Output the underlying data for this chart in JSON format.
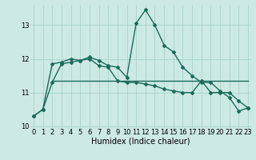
{
  "title": "",
  "xlabel": "Humidex (Indice chaleur)",
  "bg_color": "#cce9e4",
  "grid_color": "#aad4cc",
  "line_color": "#1a6b5a",
  "x_values": [
    0,
    1,
    2,
    3,
    4,
    5,
    6,
    7,
    8,
    9,
    10,
    11,
    12,
    13,
    14,
    15,
    16,
    17,
    18,
    19,
    20,
    21,
    22,
    23
  ],
  "line1_y": [
    10.3,
    10.5,
    11.85,
    11.9,
    12.0,
    11.95,
    12.05,
    11.95,
    11.8,
    11.75,
    11.45,
    13.05,
    13.45,
    13.0,
    12.4,
    12.2,
    11.75,
    11.5,
    11.3,
    11.3,
    11.05,
    10.85,
    10.45,
    10.55
  ],
  "line2_y": [
    10.3,
    10.5,
    11.3,
    11.85,
    11.9,
    11.95,
    12.0,
    11.8,
    11.75,
    11.35,
    11.3,
    11.3,
    11.25,
    11.2,
    11.1,
    11.05,
    11.0,
    11.0,
    11.35,
    11.0,
    11.0,
    11.0,
    10.75,
    10.55
  ],
  "line3_x": [
    2,
    3,
    4,
    5,
    6,
    7,
    8,
    9,
    10,
    11,
    12,
    13,
    14,
    15,
    16,
    17,
    18,
    19,
    20,
    21,
    22,
    23
  ],
  "line3_y": [
    11.35,
    11.35,
    11.35,
    11.35,
    11.35,
    11.35,
    11.35,
    11.35,
    11.35,
    11.35,
    11.35,
    11.35,
    11.35,
    11.35,
    11.35,
    11.35,
    11.35,
    11.35,
    11.35,
    11.35,
    11.35,
    11.35
  ],
  "ylim": [
    9.95,
    13.6
  ],
  "yticks": [
    10,
    11,
    12,
    13
  ],
  "xlim": [
    -0.3,
    23.3
  ],
  "xticks": [
    0,
    1,
    2,
    3,
    4,
    5,
    6,
    7,
    8,
    9,
    10,
    11,
    12,
    13,
    14,
    15,
    16,
    17,
    18,
    19,
    20,
    21,
    22,
    23
  ],
  "xlabel_fontsize": 7,
  "tick_fontsize": 6
}
